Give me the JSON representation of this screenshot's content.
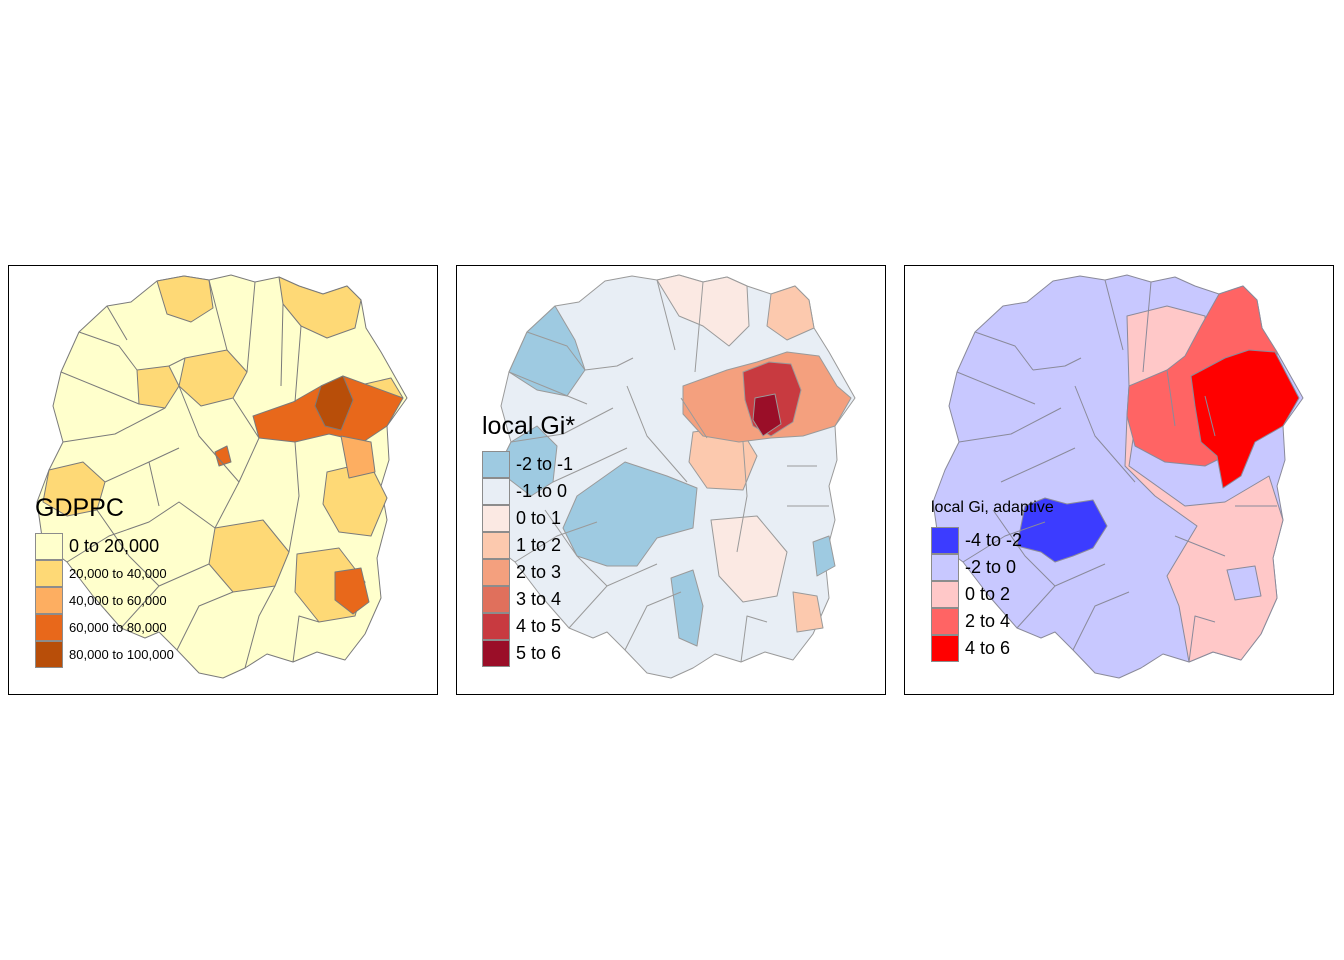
{
  "panels": [
    {
      "legend_title": "GDPPC",
      "legend": [
        {
          "label": "0 to 20,000",
          "color": "#ffffcc"
        },
        {
          "label": "20,000 to 40,000",
          "color": "#fed976"
        },
        {
          "label": "40,000 to 60,000",
          "color": "#fdae61"
        },
        {
          "label": "60,000 to 80,000",
          "color": "#e8681b"
        },
        {
          "label": "80,000 to 100,000",
          "color": "#b84e09"
        }
      ]
    },
    {
      "legend_title": "local Gi*",
      "legend": [
        {
          "label": "-2 to -1",
          "color": "#9ecae1"
        },
        {
          "label": "-1 to 0",
          "color": "#e8eef5"
        },
        {
          "label": "0 to 1",
          "color": "#fbe9e3"
        },
        {
          "label": "1 to 2",
          "color": "#fcc9ae"
        },
        {
          "label": "2 to 3",
          "color": "#f4a07e"
        },
        {
          "label": "3 to 4",
          "color": "#e0705c"
        },
        {
          "label": "4 to 5",
          "color": "#c83a40"
        },
        {
          "label": "5 to 6",
          "color": "#9a0e28"
        }
      ]
    },
    {
      "legend_title": "local Gi, adaptive",
      "legend": [
        {
          "label": "-4 to -2",
          "color": "#3c3cff"
        },
        {
          "label": "-2 to 0",
          "color": "#c8c8ff"
        },
        {
          "label": "0 to 2",
          "color": "#ffc8c8"
        },
        {
          "label": "2 to 4",
          "color": "#ff6464"
        },
        {
          "label": "4 to 6",
          "color": "#ff0000"
        }
      ]
    }
  ]
}
